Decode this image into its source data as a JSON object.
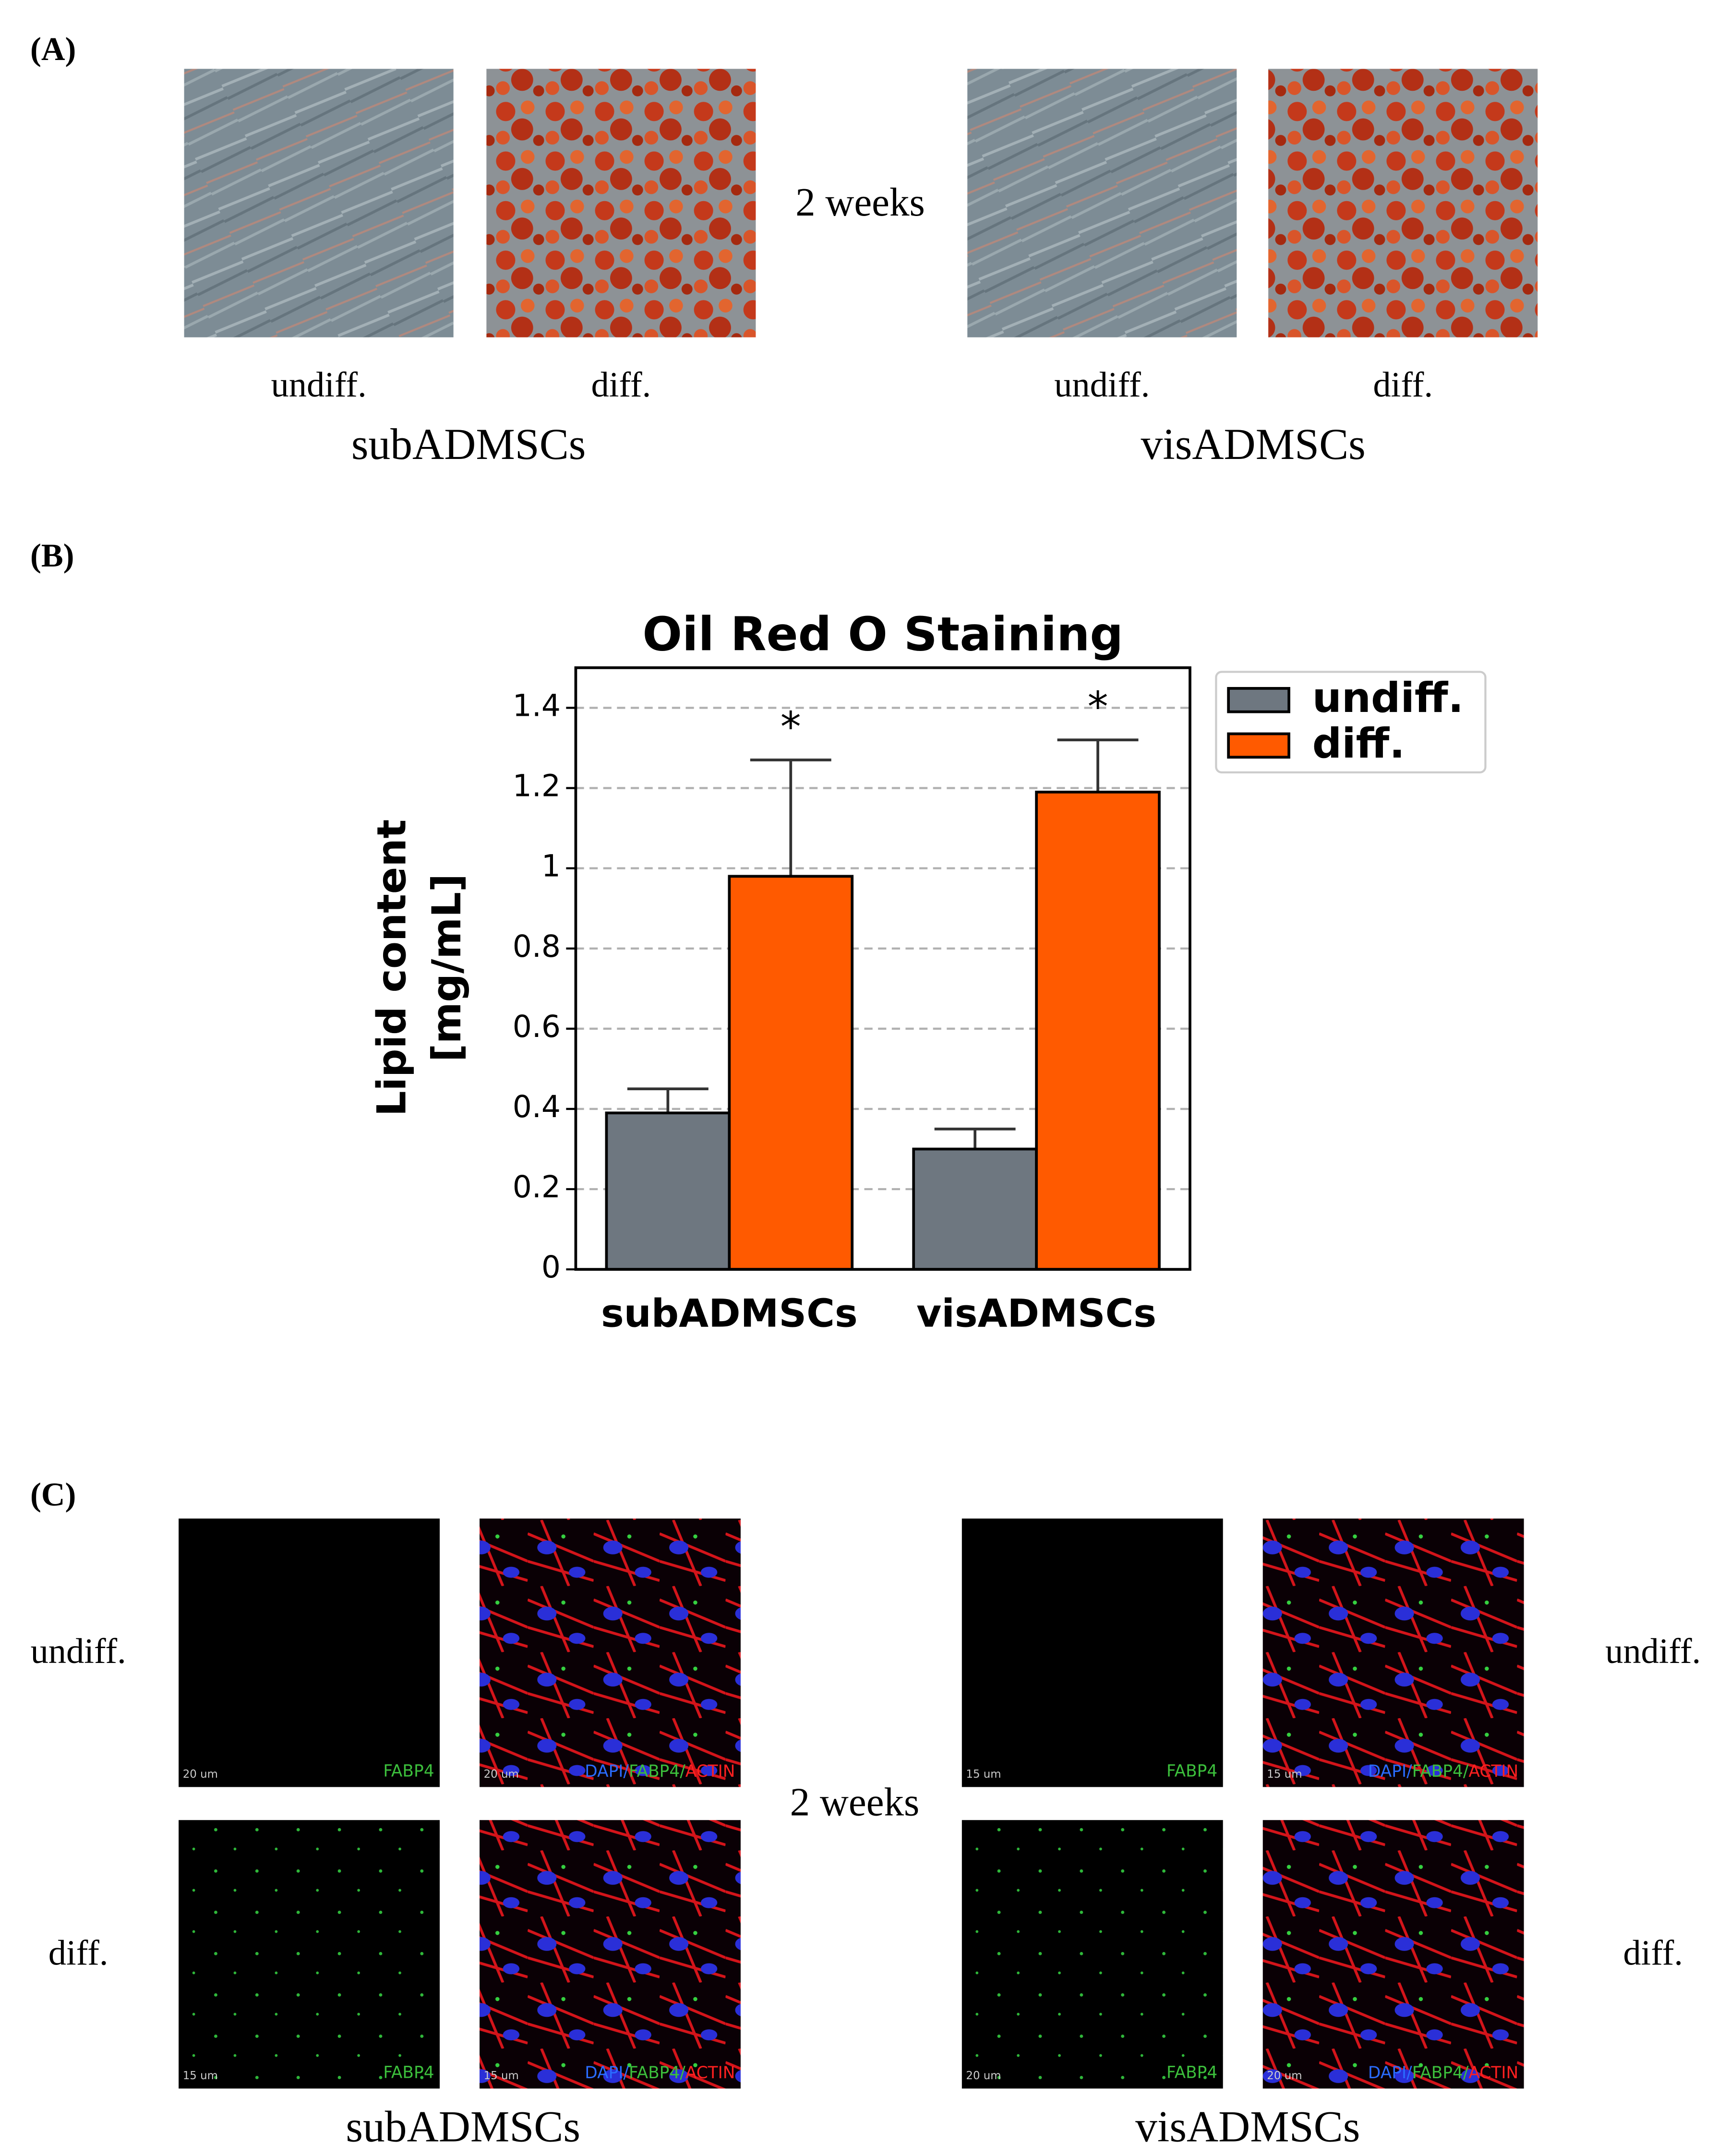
{
  "panel_a": {
    "label": "(A)",
    "duration": "2 weeks",
    "conditions": [
      "undiff.",
      "diff.",
      "undiff.",
      "diff."
    ],
    "groups": [
      "subADMSCs",
      "visADMSCs"
    ]
  },
  "panel_b": {
    "label": "(B)"
  },
  "chart_data": {
    "type": "bar",
    "title": "Oil Red O Staining",
    "ylabel": [
      "Lipid content",
      "[mg/mL]"
    ],
    "categories": [
      "subADMSCs",
      "visADMSCs"
    ],
    "series": [
      {
        "name": "undiff.",
        "color": "#6e7780",
        "values": [
          0.39,
          0.3
        ],
        "errors": [
          0.06,
          0.05
        ]
      },
      {
        "name": "diff.",
        "color": "#ff5a00",
        "values": [
          0.98,
          1.19
        ],
        "errors": [
          0.29,
          0.13
        ],
        "annotations": [
          "*",
          "*"
        ]
      }
    ],
    "ylim": [
      0,
      1.5
    ],
    "yticks": [
      0,
      0.2,
      0.4,
      0.6,
      0.8,
      1,
      1.2,
      1.4
    ],
    "grid": true,
    "legend": "outside-upper-right"
  },
  "panel_c": {
    "label": "(C)",
    "duration": "2 weeks",
    "rows": [
      "undiff.",
      "diff."
    ],
    "groups": [
      "subADMSCs",
      "visADMSCs"
    ],
    "scale_bars": [
      "20 um",
      "20 um",
      "15 um",
      "15 um",
      "15 um",
      "15 um",
      "20 um",
      "20 um"
    ],
    "stains": {
      "single": "FABP4",
      "dapi": "DAPI/",
      "fabp4": "FABP4/",
      "actin": "ACTIN"
    }
  }
}
